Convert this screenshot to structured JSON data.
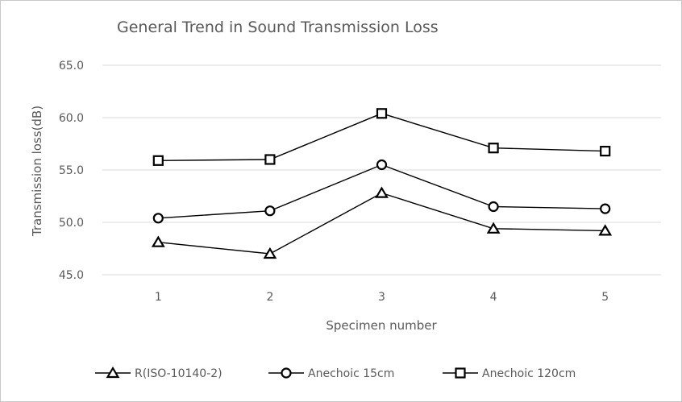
{
  "chart_data": {
    "type": "line",
    "title": "General Trend in Sound  Transmission Loss",
    "xlabel": "Specimen number",
    "ylabel": "Transmission loss(dB)",
    "x": [
      "1",
      "2",
      "3",
      "4",
      "5"
    ],
    "ylim": [
      45.0,
      65.0
    ],
    "yticks": [
      "45.0",
      "50.0",
      "55.0",
      "60.0",
      "65.0"
    ],
    "grid": true,
    "legend_position": "bottom",
    "series": [
      {
        "name": "R(ISO-10140-2)",
        "marker": "triangle",
        "values": [
          48.1,
          47.0,
          52.8,
          49.4,
          49.2
        ]
      },
      {
        "name": "Anechoic 15cm",
        "marker": "circle",
        "values": [
          50.4,
          51.1,
          55.5,
          51.5,
          51.3
        ]
      },
      {
        "name": "Anechoic 120cm",
        "marker": "square",
        "values": [
          55.9,
          56.0,
          60.4,
          57.1,
          56.8
        ]
      }
    ],
    "colors": {
      "line": "#000000",
      "grid": "#d9d9d9",
      "text": "#595959"
    }
  }
}
